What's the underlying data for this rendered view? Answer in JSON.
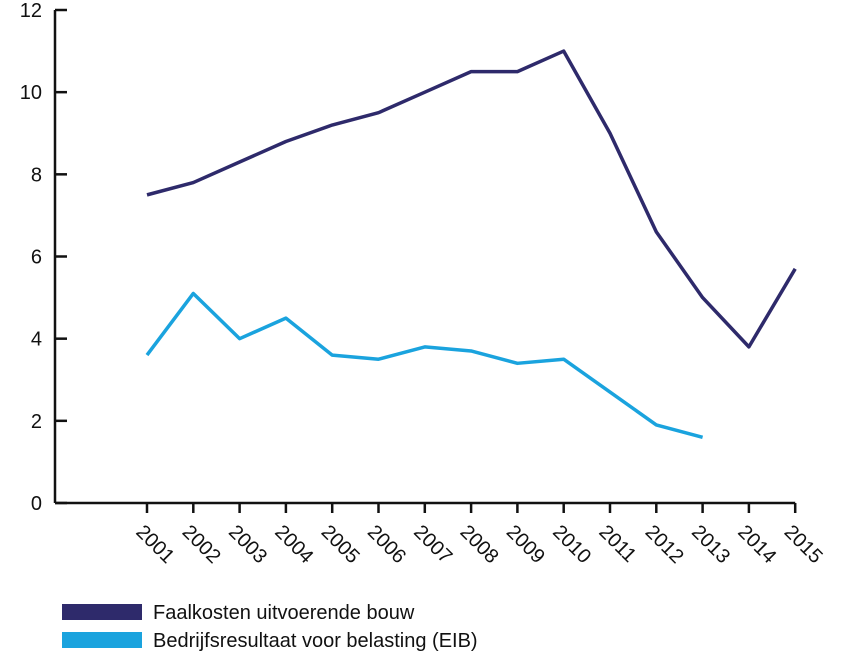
{
  "chart_data": {
    "type": "line",
    "categories": [
      "2001",
      "2002",
      "2003",
      "2004",
      "2005",
      "2006",
      "2007",
      "2008",
      "2009",
      "2010",
      "2011",
      "2012",
      "2013",
      "2014",
      "2015"
    ],
    "series": [
      {
        "name": "Faalkosten uitvoerende bouw",
        "color": "#2e2a6b",
        "values": [
          7.5,
          7.8,
          8.3,
          8.8,
          9.2,
          9.5,
          10.0,
          10.5,
          10.5,
          11.0,
          9.0,
          6.6,
          5.0,
          3.8,
          5.7
        ]
      },
      {
        "name": "Bedrijfsresultaat voor belasting (EIB)",
        "color": "#1aa3de",
        "values": [
          3.6,
          5.1,
          4.0,
          4.5,
          3.6,
          3.5,
          3.8,
          3.7,
          3.4,
          3.5,
          2.7,
          1.9,
          1.6,
          null,
          null
        ]
      }
    ],
    "ylim": [
      0,
      12
    ],
    "yticks": [
      0,
      2,
      4,
      6,
      8,
      10,
      12
    ]
  }
}
